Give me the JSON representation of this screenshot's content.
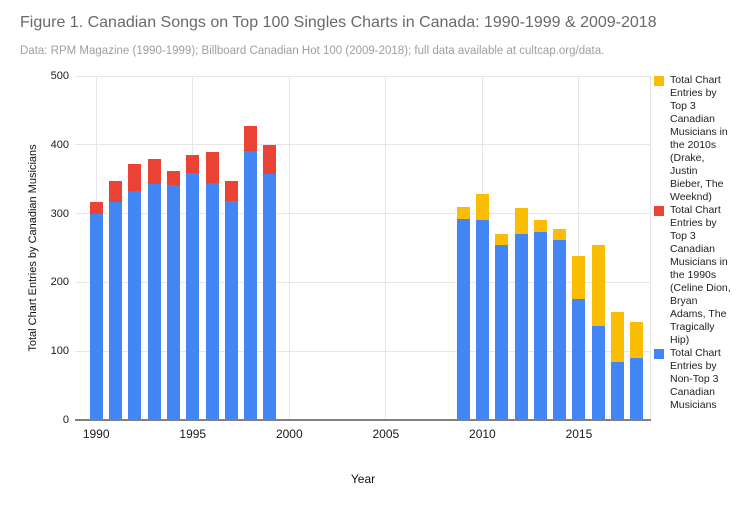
{
  "header": {
    "title": "Figure 1. Canadian Songs on Top 100 Singles Charts in Canada: 1990-1999 & 2009-2018",
    "subtitle": "Data: RPM Magazine (1990-1999); Billboard Canadian Hot 100 (2009-2018); full data available at cultcap.org/data."
  },
  "colors": {
    "blue": "#4285F4",
    "red": "#EA4335",
    "yellow": "#FBBC04",
    "gridline": "#e6e6e6",
    "axis_line": "#808080"
  },
  "legend": {
    "entries": [
      {
        "color": "#FBBC04",
        "label": "Total Chart\nEntries by\nTop 3\nCanadian\nMusicians in\nthe 2010s\n(Drake,\nJustin\nBieber, The\nWeeknd)"
      },
      {
        "color": "#EA4335",
        "label": "Total Chart\nEntries by\nTop 3\nCanadian\nMusicians in\nthe 1990s\n(Celine Dion,\nBryan\nAdams, The\nTragically\nHip)"
      },
      {
        "color": "#4285F4",
        "label": "Total Chart\nEntries by\nNon-Top 3\nCanadian\nMusicians"
      }
    ]
  },
  "chart_data": {
    "type": "bar",
    "stacked": true,
    "title": "Figure 1. Canadian Songs on Top 100 Singles Charts in Canada: 1990-1999 & 2009-2018",
    "subtitle": "Data: RPM Magazine (1990-1999); Billboard Canadian Hot 100 (2009-2018); full data available at cultcap.org/data.",
    "xlabel": "Year",
    "ylabel": "Total Chart Entries by Canadian Musicians",
    "ylim": [
      0,
      500
    ],
    "y_ticks": [
      0,
      100,
      200,
      300,
      400,
      500
    ],
    "x_ticks": [
      1990,
      1995,
      2000,
      2005,
      2010,
      2015
    ],
    "x_range": [
      1990,
      2018
    ],
    "grid": true,
    "legend_position": "right",
    "years": [
      1990,
      1991,
      1992,
      1993,
      1994,
      1995,
      1996,
      1997,
      1998,
      1999,
      2009,
      2010,
      2011,
      2012,
      2013,
      2014,
      2015,
      2016,
      2017,
      2018
    ],
    "series": [
      {
        "name": "Total Chart Entries by Non-Top 3 Canadian Musicians",
        "color": "#4285F4",
        "values": [
          300,
          317,
          333,
          343,
          341,
          359,
          345,
          319,
          391,
          358,
          292,
          290,
          255,
          270,
          273,
          261,
          176,
          136,
          85,
          90
        ]
      },
      {
        "name": "Total Chart Entries by Top 3 Canadian Musicians in the 1990s (Celine Dion, Bryan Adams, The Tragically Hip)",
        "color": "#EA4335",
        "values": [
          17,
          30,
          39,
          37,
          21,
          26,
          45,
          28,
          36,
          42,
          0,
          0,
          0,
          0,
          0,
          0,
          0,
          0,
          0,
          0
        ]
      },
      {
        "name": "Total Chart Entries by Top 3 Canadian Musicians in the 2010s (Drake, Justin Bieber, The Weeknd)",
        "color": "#FBBC04",
        "values": [
          0,
          0,
          0,
          0,
          0,
          0,
          0,
          0,
          0,
          0,
          18,
          38,
          16,
          38,
          18,
          17,
          62,
          119,
          72,
          52
        ]
      }
    ]
  }
}
